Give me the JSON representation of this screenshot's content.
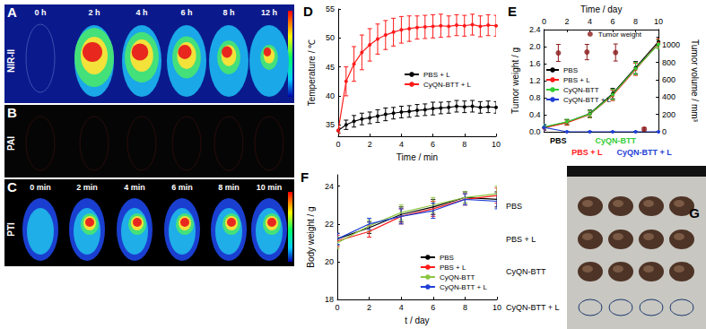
{
  "panels": {
    "A": {
      "label": "A",
      "row_label": "NIR-II",
      "times": [
        "0 h",
        "2 h",
        "4 h",
        "6 h",
        "8 h",
        "12 h"
      ]
    },
    "B": {
      "label": "B",
      "row_label": "PAI"
    },
    "C": {
      "label": "C",
      "row_label": "PTI",
      "times": [
        "0 min",
        "2 min",
        "4 min",
        "6 min",
        "8 min",
        "10 min"
      ]
    },
    "G": {
      "label": "G",
      "rows": [
        "PBS",
        "PBS + L",
        "CyQN-BTT",
        "CyQN-BTT + L"
      ]
    }
  },
  "chart_data": [
    {
      "type": "line",
      "title": "D",
      "xlabel": "Time / min",
      "ylabel": "Temperature / ℃",
      "x": [
        0,
        0.5,
        1,
        1.5,
        2,
        2.5,
        3,
        3.5,
        4,
        4.5,
        5,
        5.5,
        6,
        6.5,
        7,
        7.5,
        8,
        8.5,
        9,
        9.5,
        10
      ],
      "xlim": [
        0,
        10
      ],
      "xticks": [
        0,
        2,
        4,
        6,
        8,
        10
      ],
      "ylim": [
        33,
        55
      ],
      "yticks": [
        35,
        40,
        45,
        50,
        55
      ],
      "grid": false,
      "legend": "upper left",
      "series": [
        {
          "name": "PBS + L",
          "color": "#000000",
          "marker": "circle",
          "values": [
            34.0,
            35.0,
            35.6,
            36.0,
            36.2,
            36.5,
            36.8,
            37.0,
            37.2,
            37.3,
            37.5,
            37.6,
            37.8,
            37.9,
            38.0,
            38.2,
            38.1,
            38.2,
            38.0,
            38.1,
            38.0
          ],
          "errors": [
            0.4,
            0.8,
            1.0,
            1.0,
            1.0,
            1.1,
            1.1,
            1.0,
            1.0,
            1.0,
            1.0,
            1.0,
            1.1,
            1.0,
            1.0,
            1.0,
            1.0,
            1.0,
            1.0,
            1.0,
            1.0
          ]
        },
        {
          "name": "CyQN-BTT + L",
          "color": "#ff1a1a",
          "marker": "circle",
          "values": [
            34.0,
            42.5,
            45.5,
            47.5,
            48.8,
            49.8,
            50.5,
            51.0,
            51.4,
            51.6,
            51.8,
            51.9,
            52.0,
            52.1,
            52.0,
            52.2,
            52.1,
            52.3,
            52.0,
            52.2,
            52.1
          ],
          "errors": [
            0.5,
            2.5,
            3.0,
            3.0,
            2.8,
            2.6,
            2.5,
            2.4,
            2.3,
            2.2,
            2.0,
            2.0,
            2.0,
            2.0,
            1.8,
            1.8,
            1.8,
            1.8,
            1.8,
            1.8,
            1.8
          ]
        }
      ]
    },
    {
      "type": "line",
      "title": "E",
      "xlabel": "Time / day",
      "ylabel": "Tumor weight / g",
      "y2label": "Tumor volume / mm³",
      "x": [
        0,
        2,
        4,
        6,
        8,
        10
      ],
      "xlim": [
        0,
        10
      ],
      "xticks": [
        0,
        2,
        4,
        6,
        8,
        10
      ],
      "ylim": [
        0,
        2.4
      ],
      "yticks": [
        {
          "value": 0,
          "label": "0.0"
        },
        0.4,
        0.8,
        1.2,
        1.6,
        {
          "value": 2,
          "label": "2.0"
        },
        2.4
      ],
      "y2lim": [
        0,
        1180
      ],
      "y2ticks": [
        0,
        200,
        400,
        600,
        800,
        1000
      ],
      "grid": false,
      "legend": "center left",
      "series": [
        {
          "name": "PBS",
          "color": "#000000",
          "marker": "circle",
          "axis": "y2",
          "values": [
            50,
            110,
            210,
            440,
            740,
            1040
          ],
          "errors": [
            30,
            30,
            40,
            60,
            70,
            50
          ]
        },
        {
          "name": "PBS + L",
          "color": "#ff1a1a",
          "marker": "circle",
          "axis": "y2",
          "values": [
            45,
            105,
            200,
            420,
            720,
            1020
          ],
          "errors": [
            30,
            30,
            40,
            60,
            70,
            50
          ]
        },
        {
          "name": "CyQN-BTT",
          "color": "#33cc33",
          "marker": "circle",
          "axis": "y2",
          "values": [
            55,
            115,
            205,
            430,
            730,
            1010
          ],
          "errors": [
            30,
            30,
            40,
            60,
            70,
            50
          ]
        },
        {
          "name": "CyQN-BTT + L",
          "color": "#1f3fd6",
          "marker": "circle",
          "axis": "y2",
          "values": [
            50,
            0,
            0,
            0,
            0,
            0
          ],
          "errors": [
            30,
            5,
            5,
            5,
            5,
            5
          ]
        }
      ],
      "tumor_weight": {
        "name": "Tumor weight",
        "type": "scatter",
        "color": "#8b1a1a",
        "marker": "circle",
        "legend": "upper right",
        "categories": [
          "PBS",
          "PBS + L",
          "CyQN-BTT",
          "CyQN-BTT + L"
        ],
        "values": [
          1.85,
          1.87,
          1.86,
          0.06
        ],
        "errors": [
          0.2,
          0.18,
          0.2,
          0.04
        ]
      }
    },
    {
      "type": "line",
      "title": "F",
      "xlabel": "t / day",
      "ylabel": "Body weight / g",
      "x": [
        0,
        2,
        4,
        6,
        8,
        10
      ],
      "xlim": [
        0,
        10
      ],
      "xticks": [
        0,
        2,
        4,
        6,
        8,
        10
      ],
      "ylim": [
        18,
        24.6
      ],
      "yticks": [
        18,
        20,
        22,
        24
      ],
      "grid": false,
      "legend": "lower right",
      "series": [
        {
          "name": "PBS",
          "color": "#000000",
          "marker": "none",
          "values": [
            21.2,
            21.8,
            22.5,
            22.9,
            23.4,
            23.3
          ],
          "errors": [
            0.3,
            0.3,
            0.4,
            0.4,
            0.3,
            0.4
          ]
        },
        {
          "name": "PBS + L",
          "color": "#ff1a1a",
          "marker": "none",
          "values": [
            21.1,
            21.6,
            22.4,
            22.8,
            23.3,
            23.5
          ],
          "errors": [
            0.3,
            0.3,
            0.4,
            0.4,
            0.3,
            0.4
          ]
        },
        {
          "name": "CyQN-BTT",
          "color": "#8cc63f",
          "marker": "none",
          "values": [
            21.0,
            21.9,
            22.6,
            23.0,
            23.4,
            23.6
          ],
          "errors": [
            0.3,
            0.3,
            0.4,
            0.4,
            0.3,
            0.4
          ]
        },
        {
          "name": "CyQN-BTT + L",
          "color": "#1f3fd6",
          "marker": "none",
          "values": [
            21.2,
            22.0,
            22.4,
            22.7,
            23.3,
            23.2
          ],
          "errors": [
            0.3,
            0.3,
            0.4,
            0.4,
            0.3,
            0.4
          ]
        }
      ]
    }
  ]
}
